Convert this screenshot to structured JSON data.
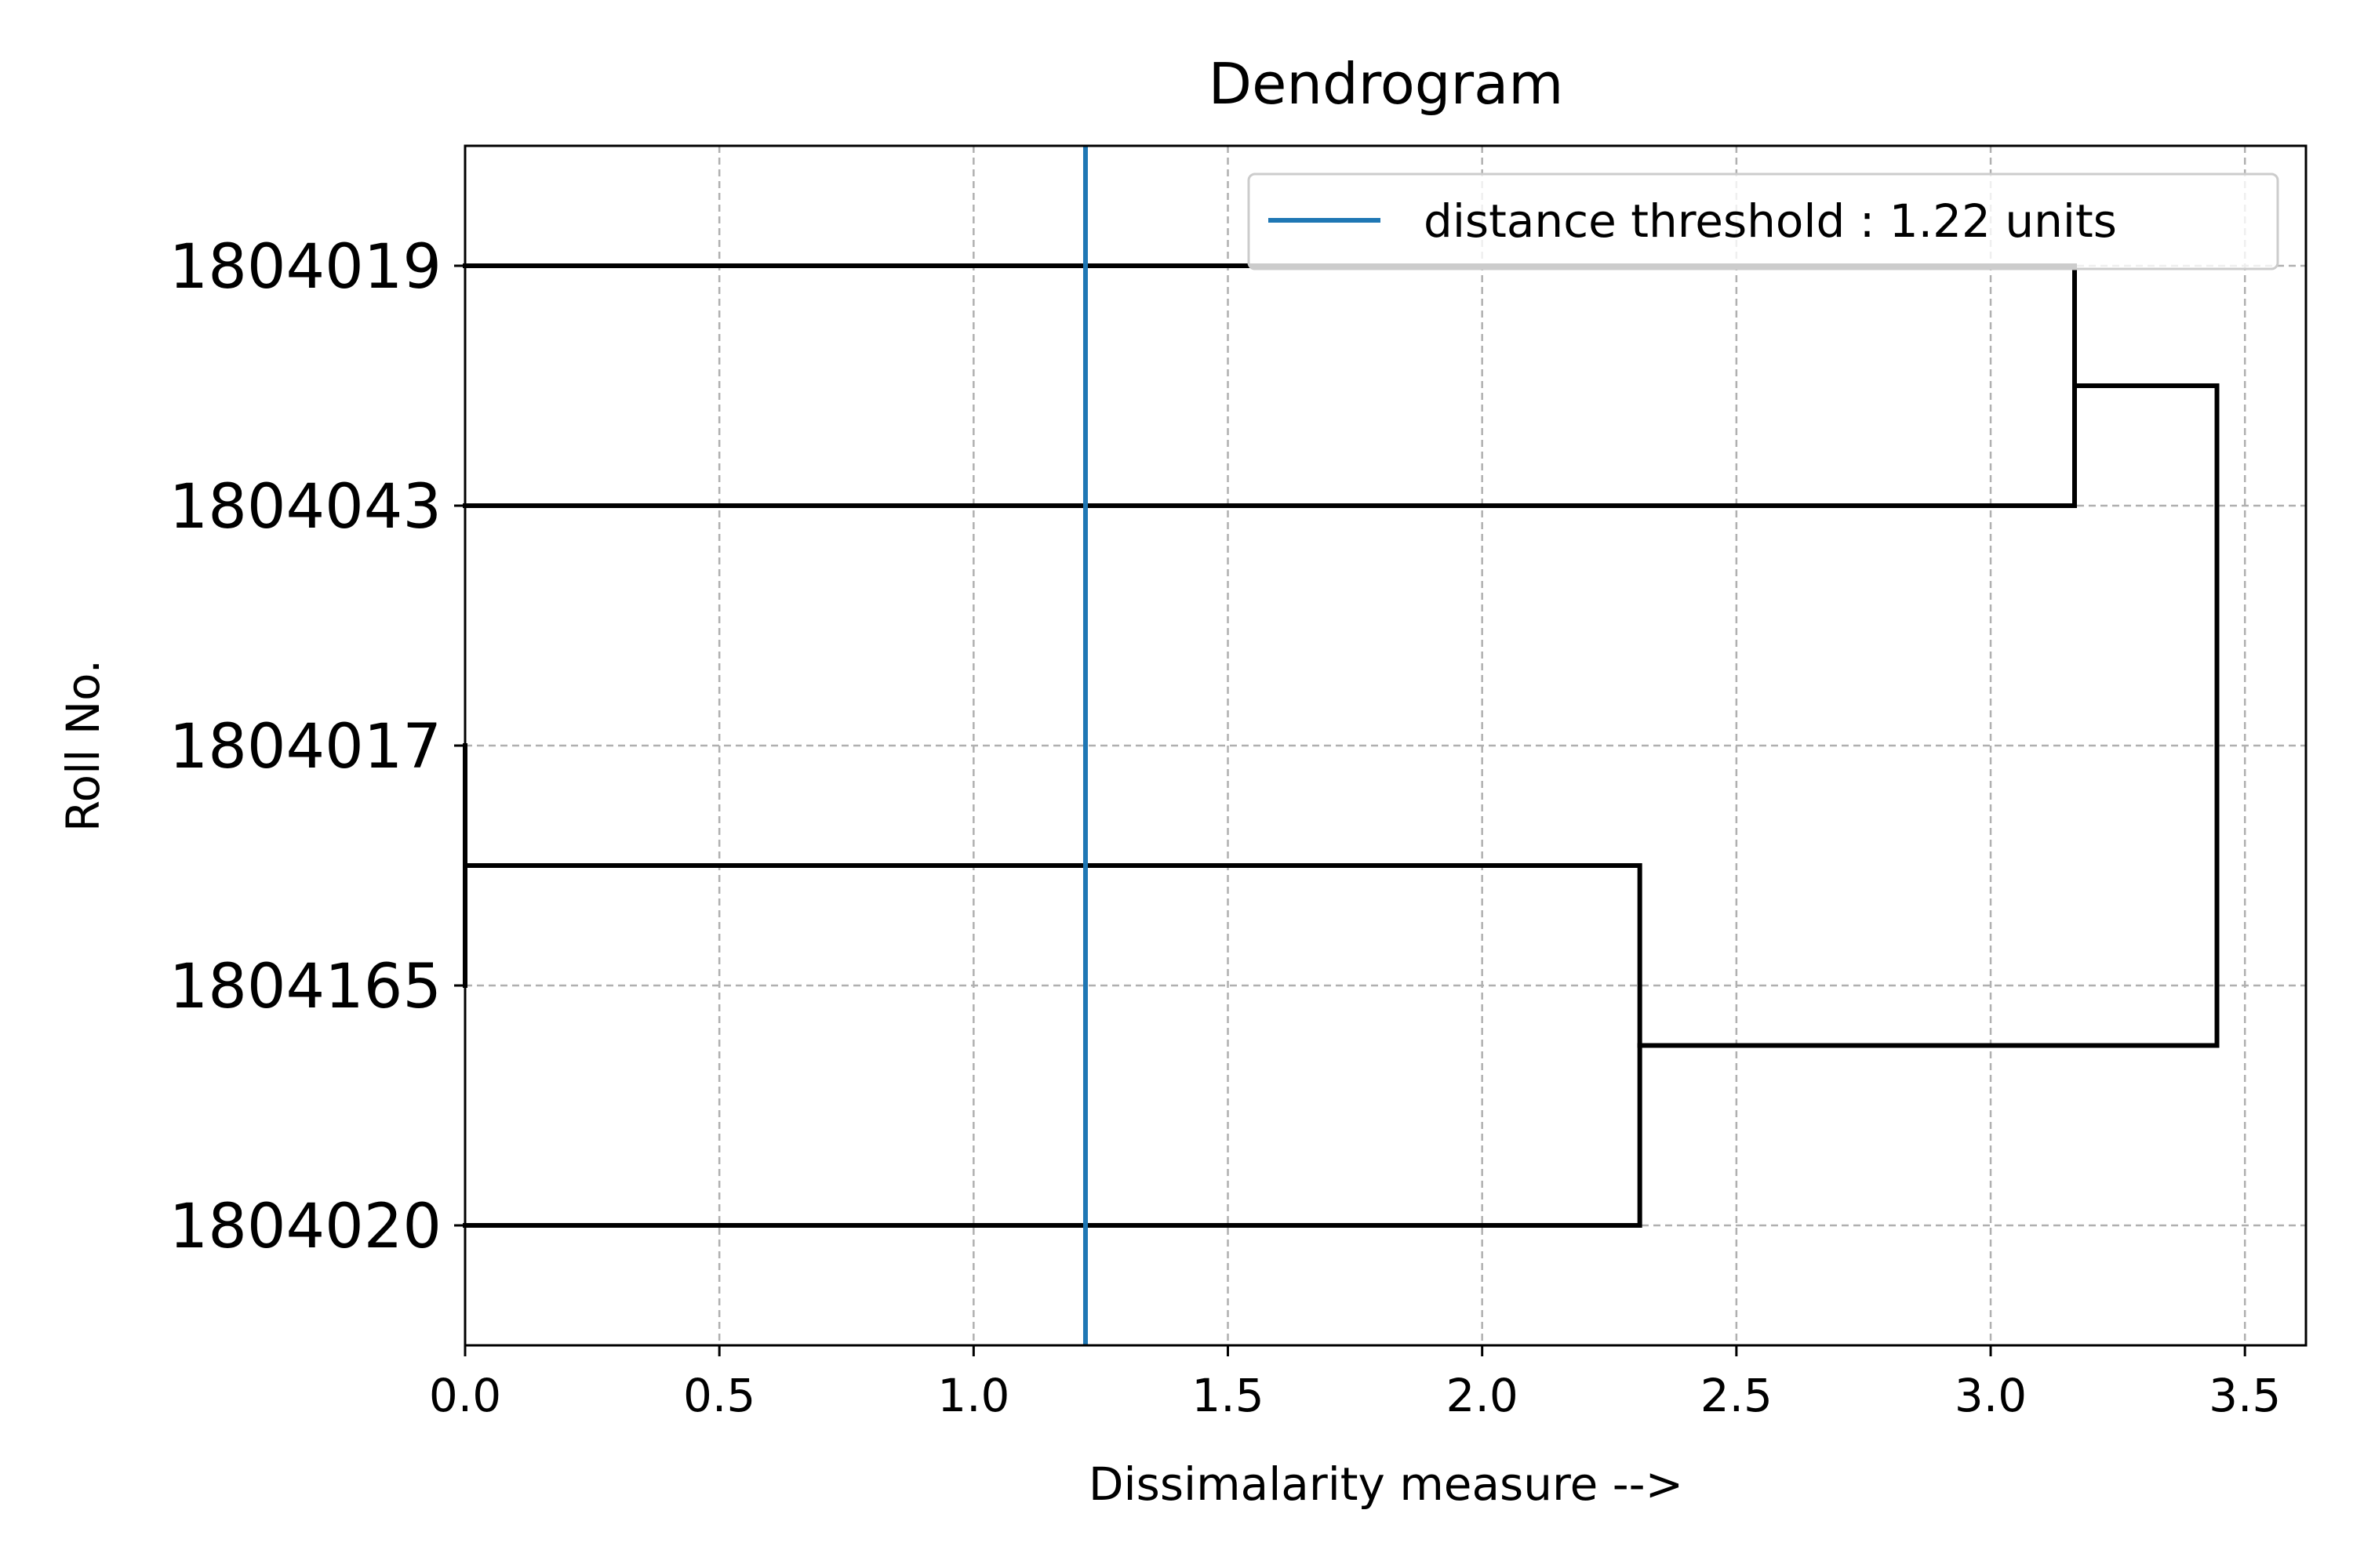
{
  "chart_data": {
    "type": "dendrogram",
    "orientation": "horizontal",
    "title": "Dendrogram",
    "xlabel": "Dissimalarity measure -->",
    "ylabel": "Roll No.",
    "xlim": [
      0.0,
      3.62
    ],
    "x_ticks": [
      "0.0",
      "0.5",
      "1.0",
      "1.5",
      "2.0",
      "2.5",
      "3.0",
      "3.5"
    ],
    "x_tick_values": [
      0.0,
      0.5,
      1.0,
      1.5,
      2.0,
      2.5,
      3.0,
      3.5
    ],
    "grid": true,
    "leaves": [
      "1804019",
      "1804043",
      "1804017",
      "1804165",
      "1804020"
    ],
    "merges": [
      {
        "clusters": [
          "1804017",
          "1804165"
        ],
        "distance": 0.0,
        "color": "#ff7f0e"
      },
      {
        "clusters": [
          "1804019",
          "1804043"
        ],
        "distance": 3.165,
        "color": "#000000"
      },
      {
        "clusters": [
          "(1804017, 1804165)",
          "1804020"
        ],
        "distance": 2.31,
        "color": "#000000"
      },
      {
        "clusters": [
          "(1804019, 1804043)",
          "((1804017, 1804165), 1804020)"
        ],
        "distance": 3.445,
        "color": "#000000"
      }
    ],
    "threshold": {
      "value": 1.22,
      "color": "#1f77b4"
    },
    "legend": {
      "position": "top-right",
      "entries": [
        {
          "label": "distance threshold : 1.22 units",
          "color": "#1f77b4"
        }
      ]
    }
  }
}
